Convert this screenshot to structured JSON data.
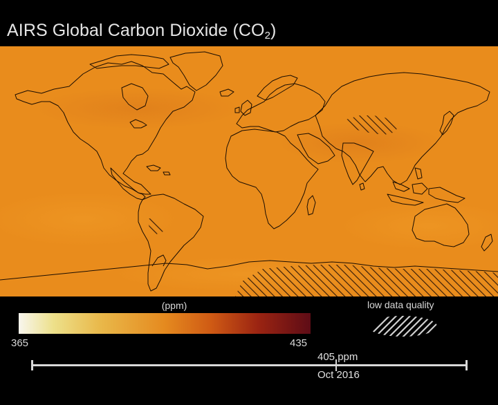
{
  "title": {
    "main": "AIRS Global Carbon Dioxide  (CO",
    "subscript": "2",
    "close": ")"
  },
  "legend": {
    "unit": "(ppm)",
    "min_label": "365",
    "max_label": "435",
    "min": 365,
    "max": 435,
    "colors": [
      "#f8f6ee",
      "#ede08a",
      "#e9b84a",
      "#e58a1f",
      "#cf5a14",
      "#9b2412",
      "#5e0c16"
    ]
  },
  "low_quality": {
    "label": "low data quality"
  },
  "timeline": {
    "value_label": "405 ppm",
    "date_label": "Oct 2016",
    "value": 405,
    "progress": 0.69
  },
  "map": {
    "background_color": "#e98c1c",
    "projection": "equirectangular",
    "regions_hatched": [
      "Tibetan Plateau",
      "Andes",
      "Antarctica"
    ]
  }
}
